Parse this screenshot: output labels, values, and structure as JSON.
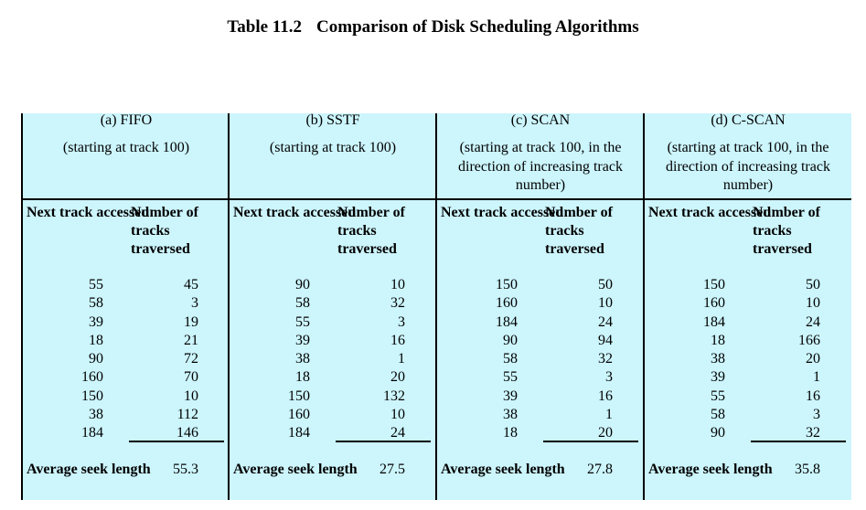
{
  "title": {
    "number": "Table 11.2",
    "text": "Comparison of Disk Scheduling Algorithms"
  },
  "col_header_next": "Next track accessed",
  "col_header_num": "Number of tracks traversed",
  "avg_label": "Average seek length",
  "panels": [
    {
      "name": "(a) FIFO",
      "start": "(starting at track 100)",
      "rows": [
        [
          "55",
          "45"
        ],
        [
          "58",
          "3"
        ],
        [
          "39",
          "19"
        ],
        [
          "18",
          "21"
        ],
        [
          "90",
          "72"
        ],
        [
          "160",
          "70"
        ],
        [
          "150",
          "10"
        ],
        [
          "38",
          "112"
        ],
        [
          "184",
          "146"
        ]
      ],
      "avg": "55.3"
    },
    {
      "name": "(b) SSTF",
      "start": "(starting at track 100)",
      "rows": [
        [
          "90",
          "10"
        ],
        [
          "58",
          "32"
        ],
        [
          "55",
          "3"
        ],
        [
          "39",
          "16"
        ],
        [
          "38",
          "1"
        ],
        [
          "18",
          "20"
        ],
        [
          "150",
          "132"
        ],
        [
          "160",
          "10"
        ],
        [
          "184",
          "24"
        ]
      ],
      "avg": "27.5"
    },
    {
      "name": "(c) SCAN",
      "start": "(starting at track 100, in the direction of increasing track number)",
      "rows": [
        [
          "150",
          "50"
        ],
        [
          "160",
          "10"
        ],
        [
          "184",
          "24"
        ],
        [
          "90",
          "94"
        ],
        [
          "58",
          "32"
        ],
        [
          "55",
          "3"
        ],
        [
          "39",
          "16"
        ],
        [
          "38",
          "1"
        ],
        [
          "18",
          "20"
        ]
      ],
      "avg": "27.8"
    },
    {
      "name": "(d) C-SCAN",
      "start": "(starting at track 100, in the direction of increasing track number)",
      "rows": [
        [
          "150",
          "50"
        ],
        [
          "160",
          "10"
        ],
        [
          "184",
          "24"
        ],
        [
          "18",
          "166"
        ],
        [
          "38",
          "20"
        ],
        [
          "39",
          "1"
        ],
        [
          "55",
          "16"
        ],
        [
          "58",
          "3"
        ],
        [
          "90",
          "32"
        ]
      ],
      "avg": "35.8"
    }
  ]
}
